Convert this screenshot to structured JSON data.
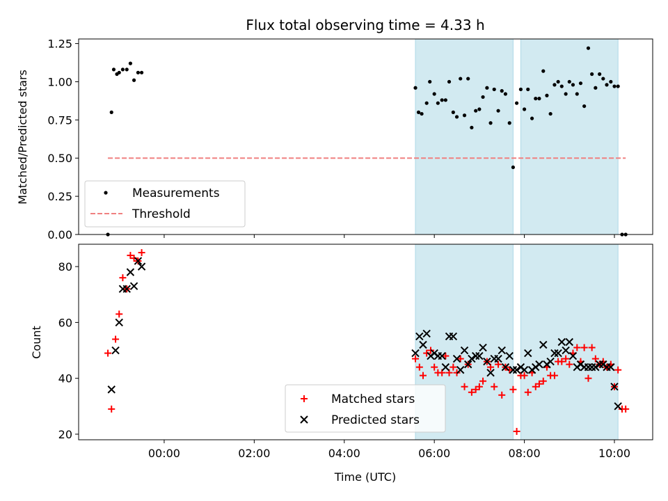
{
  "title": "Flux total observing time = 4.33 h",
  "xlabel": "Time (UTC)",
  "colors": {
    "measurement": "#000000",
    "threshold": "#f08080",
    "matched": "#ff0000",
    "predicted": "#000000",
    "span": "#add8e6"
  },
  "chart_data": [
    {
      "type": "scatter",
      "ylabel": "Matched/Predicted stars",
      "ylim": [
        0,
        1.28
      ],
      "xlim": [
        -1.9,
        10.85
      ],
      "x_unit": "hours UTC",
      "yticks": [
        0,
        0.25,
        0.5,
        0.75,
        1.0,
        1.25
      ],
      "ytick_labels": [
        "0.00",
        "0.25",
        "0.50",
        "0.75",
        "1.00",
        "1.25"
      ],
      "legend_placement": "lower-left",
      "legend": [
        "Measurements",
        "Threshold"
      ],
      "spans": [
        [
          5.58,
          7.75
        ],
        [
          7.92,
          10.08
        ]
      ],
      "threshold": {
        "name": "Threshold",
        "value": 0.5,
        "x_range": [
          -1.25,
          10.25
        ]
      },
      "series": [
        {
          "name": "Measurements",
          "marker": "dot",
          "x": [
            -1.25,
            -1.17,
            -1.12,
            -1.05,
            -1.0,
            -0.92,
            -0.83,
            -0.75,
            -0.67,
            -0.58,
            -0.5,
            5.58,
            5.65,
            5.72,
            5.83,
            5.9,
            6.0,
            6.08,
            6.17,
            6.25,
            6.33,
            6.42,
            6.5,
            6.58,
            6.67,
            6.75,
            6.83,
            6.92,
            7.0,
            7.08,
            7.17,
            7.25,
            7.33,
            7.42,
            7.5,
            7.58,
            7.67,
            7.75,
            7.83,
            7.92,
            8.0,
            8.08,
            8.17,
            8.25,
            8.33,
            8.42,
            8.5,
            8.58,
            8.67,
            8.75,
            8.83,
            8.92,
            9.0,
            9.08,
            9.17,
            9.25,
            9.33,
            9.42,
            9.5,
            9.58,
            9.67,
            9.75,
            9.83,
            9.92,
            10.0,
            10.08,
            10.17,
            10.25
          ],
          "y": [
            0.0,
            0.8,
            1.08,
            1.05,
            1.06,
            1.08,
            1.08,
            1.12,
            1.01,
            1.06,
            1.06,
            0.96,
            0.8,
            0.79,
            0.86,
            1.0,
            0.92,
            0.86,
            0.88,
            0.88,
            1.0,
            0.8,
            0.77,
            1.02,
            0.78,
            1.02,
            0.7,
            0.81,
            0.82,
            0.9,
            0.96,
            0.73,
            0.95,
            0.81,
            0.94,
            0.92,
            0.73,
            0.44,
            0.86,
            0.95,
            0.82,
            0.95,
            0.76,
            0.89,
            0.89,
            1.07,
            0.91,
            0.79,
            0.98,
            1.0,
            0.97,
            0.92,
            1.0,
            0.98,
            0.92,
            0.99,
            0.84,
            1.22,
            1.05,
            0.96,
            1.05,
            1.02,
            0.98,
            1.0,
            0.97,
            0.97,
            0.0,
            0.0
          ]
        }
      ]
    },
    {
      "type": "scatter",
      "ylabel": "Count",
      "ylim": [
        18,
        88
      ],
      "xlim": [
        -1.9,
        10.85
      ],
      "x_unit": "hours UTC",
      "xticks": [
        0,
        2,
        4,
        6,
        8,
        10
      ],
      "xtick_labels": [
        "00:00",
        "02:00",
        "04:00",
        "06:00",
        "08:00",
        "10:00"
      ],
      "yticks": [
        20,
        40,
        60,
        80
      ],
      "ytick_labels": [
        "20",
        "40",
        "60",
        "80"
      ],
      "legend_placement": "lower-center",
      "legend": [
        "Matched stars",
        "Predicted stars"
      ],
      "spans": [
        [
          5.58,
          7.75
        ],
        [
          7.92,
          10.08
        ]
      ],
      "series": [
        {
          "name": "Matched stars",
          "marker": "plus",
          "x": [
            -1.25,
            -1.17,
            -1.08,
            -1.0,
            -0.92,
            -0.83,
            -0.75,
            -0.67,
            -0.58,
            -0.5,
            5.58,
            5.67,
            5.75,
            5.83,
            5.92,
            6.0,
            6.08,
            6.17,
            6.25,
            6.33,
            6.42,
            6.5,
            6.58,
            6.67,
            6.75,
            6.83,
            6.92,
            7.0,
            7.08,
            7.17,
            7.25,
            7.33,
            7.42,
            7.5,
            7.58,
            7.67,
            7.75,
            7.83,
            7.92,
            8.0,
            8.08,
            8.17,
            8.25,
            8.33,
            8.42,
            8.5,
            8.58,
            8.67,
            8.75,
            8.83,
            8.92,
            9.0,
            9.08,
            9.17,
            9.25,
            9.33,
            9.42,
            9.5,
            9.58,
            9.67,
            9.75,
            9.83,
            9.92,
            10.0,
            10.08,
            10.17,
            10.25
          ],
          "y": [
            49,
            29,
            54,
            63,
            76,
            72,
            84,
            83,
            82,
            85,
            47,
            44,
            41,
            49,
            50,
            44,
            42,
            42,
            48,
            42,
            44,
            42,
            47,
            37,
            45,
            35,
            36,
            37,
            39,
            46,
            44,
            37,
            45,
            34,
            44,
            43,
            36,
            21,
            41,
            41,
            35,
            42,
            37,
            38,
            39,
            44,
            41,
            41,
            46,
            46,
            47,
            45,
            49,
            51,
            46,
            51,
            40,
            51,
            47,
            45,
            46,
            44,
            45,
            37,
            43,
            29,
            29
          ]
        },
        {
          "name": "Predicted stars",
          "marker": "x",
          "x": [
            -1.17,
            -1.08,
            -1.0,
            -0.92,
            -0.83,
            -0.75,
            -0.67,
            -0.58,
            -0.5,
            5.58,
            5.67,
            5.75,
            5.83,
            5.92,
            6.0,
            6.08,
            6.17,
            6.25,
            6.33,
            6.42,
            6.5,
            6.58,
            6.67,
            6.75,
            6.83,
            6.92,
            7.0,
            7.08,
            7.17,
            7.25,
            7.33,
            7.42,
            7.5,
            7.58,
            7.67,
            7.75,
            7.83,
            7.92,
            8.0,
            8.08,
            8.17,
            8.25,
            8.33,
            8.42,
            8.5,
            8.58,
            8.67,
            8.75,
            8.83,
            8.92,
            9.0,
            9.08,
            9.17,
            9.25,
            9.33,
            9.42,
            9.5,
            9.58,
            9.67,
            9.75,
            9.83,
            9.92,
            10.0,
            10.08
          ],
          "y": [
            36,
            50,
            60,
            72,
            72,
            78,
            73,
            82,
            80,
            49,
            55,
            52,
            56,
            48,
            49,
            48,
            48,
            44,
            55,
            55,
            47,
            43,
            50,
            45,
            47,
            48,
            48,
            51,
            46,
            42,
            47,
            47,
            50,
            44,
            48,
            43,
            43,
            44,
            43,
            49,
            43,
            44,
            45,
            52,
            45,
            46,
            49,
            49,
            53,
            50,
            53,
            48,
            44,
            45,
            44,
            44,
            44,
            44,
            45,
            45,
            44,
            44,
            37,
            30
          ]
        }
      ]
    }
  ]
}
